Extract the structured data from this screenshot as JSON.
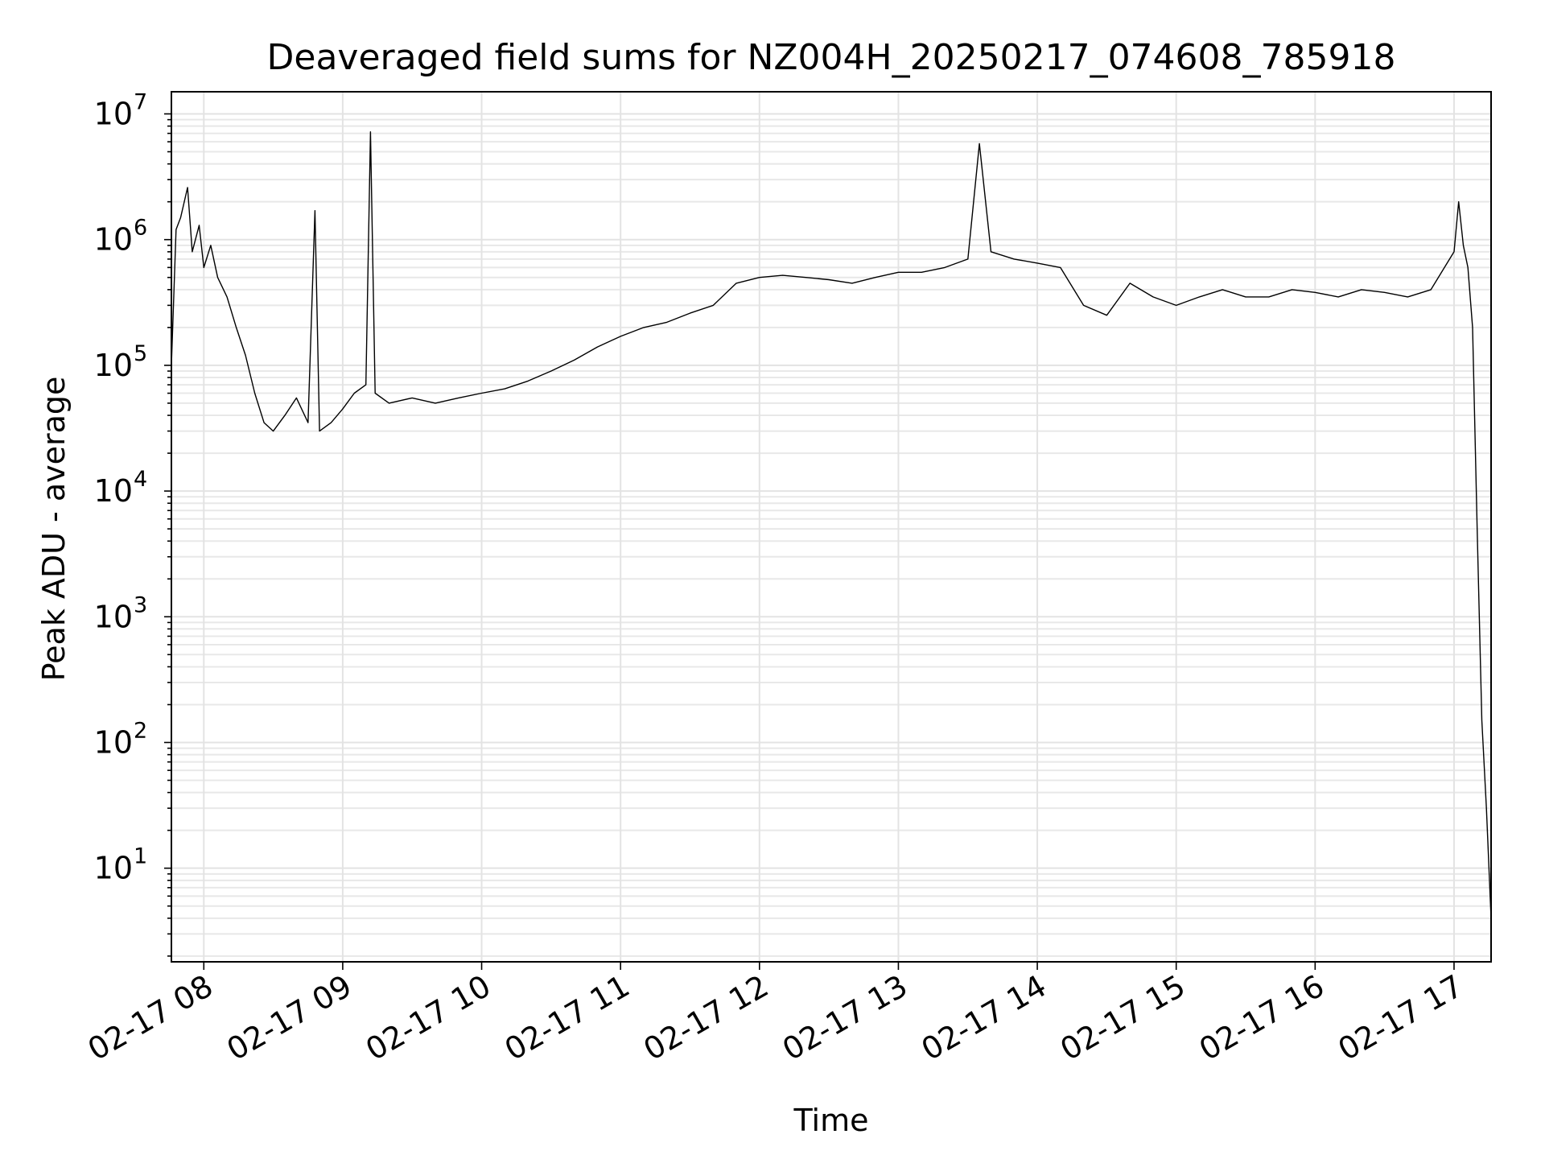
{
  "chart_data": {
    "type": "line",
    "title": "Deaveraged field sums for NZ004H_20250217_074608_785918",
    "xlabel": "Time",
    "ylabel": "Peak ADU - average",
    "x_scale": "time",
    "y_scale": "log",
    "xlim": [
      "2025-02-17 07:46",
      "2025-02-17 17:16"
    ],
    "ylim": [
      1.8,
      15000000
    ],
    "grid": "on (major and minor)",
    "legend": "none",
    "x_ticks": [
      {
        "value": "2025-02-17 08:00",
        "label": "02-17 08"
      },
      {
        "value": "2025-02-17 09:00",
        "label": "02-17 09"
      },
      {
        "value": "2025-02-17 10:00",
        "label": "02-17 10"
      },
      {
        "value": "2025-02-17 11:00",
        "label": "02-17 11"
      },
      {
        "value": "2025-02-17 12:00",
        "label": "02-17 12"
      },
      {
        "value": "2025-02-17 13:00",
        "label": "02-17 13"
      },
      {
        "value": "2025-02-17 14:00",
        "label": "02-17 14"
      },
      {
        "value": "2025-02-17 15:00",
        "label": "02-17 15"
      },
      {
        "value": "2025-02-17 16:00",
        "label": "02-17 16"
      },
      {
        "value": "2025-02-17 17:00",
        "label": "02-17 17"
      }
    ],
    "y_ticks": [
      {
        "value": 10,
        "base": "10",
        "exp": "1"
      },
      {
        "value": 100,
        "base": "10",
        "exp": "2"
      },
      {
        "value": 1000,
        "base": "10",
        "exp": "3"
      },
      {
        "value": 10000,
        "base": "10",
        "exp": "4"
      },
      {
        "value": 100000,
        "base": "10",
        "exp": "5"
      },
      {
        "value": 1000000,
        "base": "10",
        "exp": "6"
      },
      {
        "value": 10000000,
        "base": "10",
        "exp": "7"
      }
    ],
    "series": [
      {
        "color": "#000000",
        "points": [
          [
            "2025-02-17 07:46",
            100000
          ],
          [
            "2025-02-17 07:48",
            1200000
          ],
          [
            "2025-02-17 07:50",
            1500000
          ],
          [
            "2025-02-17 07:53",
            2600000
          ],
          [
            "2025-02-17 07:55",
            800000
          ],
          [
            "2025-02-17 07:58",
            1300000
          ],
          [
            "2025-02-17 08:00",
            600000
          ],
          [
            "2025-02-17 08:03",
            900000
          ],
          [
            "2025-02-17 08:06",
            500000
          ],
          [
            "2025-02-17 08:10",
            350000
          ],
          [
            "2025-02-17 08:14",
            200000
          ],
          [
            "2025-02-17 08:18",
            120000
          ],
          [
            "2025-02-17 08:22",
            60000
          ],
          [
            "2025-02-17 08:26",
            35000
          ],
          [
            "2025-02-17 08:30",
            30000
          ],
          [
            "2025-02-17 08:35",
            40000
          ],
          [
            "2025-02-17 08:40",
            55000
          ],
          [
            "2025-02-17 08:45",
            35000
          ],
          [
            "2025-02-17 08:48",
            1700000
          ],
          [
            "2025-02-17 08:50",
            30000
          ],
          [
            "2025-02-17 08:55",
            35000
          ],
          [
            "2025-02-17 09:00",
            45000
          ],
          [
            "2025-02-17 09:05",
            60000
          ],
          [
            "2025-02-17 09:10",
            70000
          ],
          [
            "2025-02-17 09:12",
            7200000
          ],
          [
            "2025-02-17 09:14",
            60000
          ],
          [
            "2025-02-17 09:20",
            50000
          ],
          [
            "2025-02-17 09:30",
            55000
          ],
          [
            "2025-02-17 09:40",
            50000
          ],
          [
            "2025-02-17 09:50",
            55000
          ],
          [
            "2025-02-17 10:00",
            60000
          ],
          [
            "2025-02-17 10:10",
            65000
          ],
          [
            "2025-02-17 10:20",
            75000
          ],
          [
            "2025-02-17 10:30",
            90000
          ],
          [
            "2025-02-17 10:40",
            110000
          ],
          [
            "2025-02-17 10:50",
            140000
          ],
          [
            "2025-02-17 11:00",
            170000
          ],
          [
            "2025-02-17 11:10",
            200000
          ],
          [
            "2025-02-17 11:20",
            220000
          ],
          [
            "2025-02-17 11:30",
            260000
          ],
          [
            "2025-02-17 11:40",
            300000
          ],
          [
            "2025-02-17 11:50",
            450000
          ],
          [
            "2025-02-17 12:00",
            500000
          ],
          [
            "2025-02-17 12:10",
            520000
          ],
          [
            "2025-02-17 12:20",
            500000
          ],
          [
            "2025-02-17 12:30",
            480000
          ],
          [
            "2025-02-17 12:40",
            450000
          ],
          [
            "2025-02-17 12:50",
            500000
          ],
          [
            "2025-02-17 13:00",
            550000
          ],
          [
            "2025-02-17 13:10",
            550000
          ],
          [
            "2025-02-17 13:20",
            600000
          ],
          [
            "2025-02-17 13:30",
            700000
          ],
          [
            "2025-02-17 13:35",
            5800000
          ],
          [
            "2025-02-17 13:40",
            800000
          ],
          [
            "2025-02-17 13:50",
            700000
          ],
          [
            "2025-02-17 14:00",
            650000
          ],
          [
            "2025-02-17 14:10",
            600000
          ],
          [
            "2025-02-17 14:20",
            300000
          ],
          [
            "2025-02-17 14:30",
            250000
          ],
          [
            "2025-02-17 14:40",
            450000
          ],
          [
            "2025-02-17 14:50",
            350000
          ],
          [
            "2025-02-17 15:00",
            300000
          ],
          [
            "2025-02-17 15:10",
            350000
          ],
          [
            "2025-02-17 15:20",
            400000
          ],
          [
            "2025-02-17 15:30",
            350000
          ],
          [
            "2025-02-17 15:40",
            350000
          ],
          [
            "2025-02-17 15:50",
            400000
          ],
          [
            "2025-02-17 16:00",
            380000
          ],
          [
            "2025-02-17 16:10",
            350000
          ],
          [
            "2025-02-17 16:20",
            400000
          ],
          [
            "2025-02-17 16:30",
            380000
          ],
          [
            "2025-02-17 16:40",
            350000
          ],
          [
            "2025-02-17 16:50",
            400000
          ],
          [
            "2025-02-17 17:00",
            800000
          ],
          [
            "2025-02-17 17:02",
            2000000
          ],
          [
            "2025-02-17 17:04",
            900000
          ],
          [
            "2025-02-17 17:06",
            600000
          ],
          [
            "2025-02-17 17:08",
            200000
          ],
          [
            "2025-02-17 17:10",
            5000
          ],
          [
            "2025-02-17 17:12",
            150
          ],
          [
            "2025-02-17 17:14",
            30
          ],
          [
            "2025-02-17 17:16",
            4
          ]
        ]
      }
    ]
  }
}
